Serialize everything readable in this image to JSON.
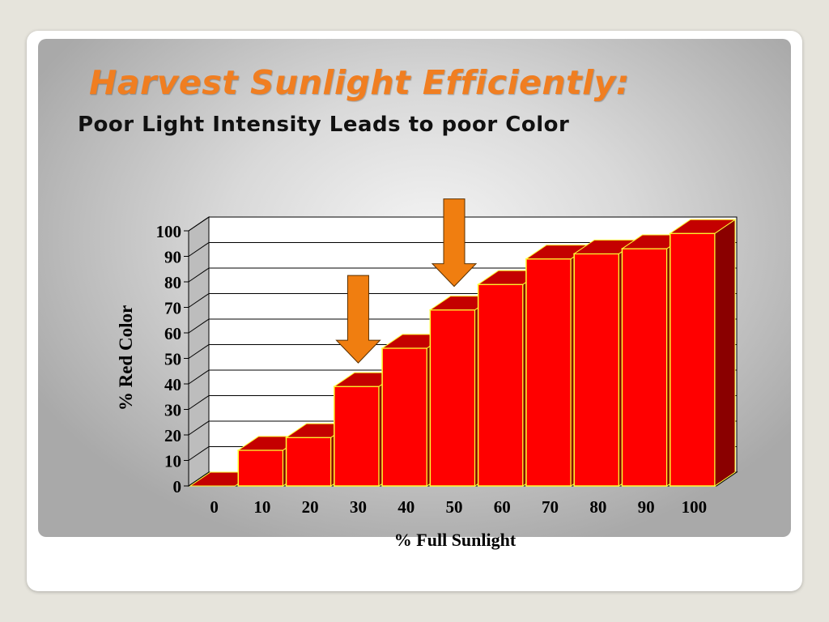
{
  "slide": {
    "title": "Harvest Sunlight Efficiently:",
    "subtitle": "Poor Light Intensity Leads to poor Color"
  },
  "colors": {
    "accent": "#f07e21",
    "bar_front": "#ff0000",
    "bar_top": "#c40000",
    "bar_side": "#8a0000",
    "bar_edge": "#ffff33",
    "arrow": "#f07e10"
  },
  "chart_data": {
    "type": "bar",
    "categories": [
      "0",
      "10",
      "20",
      "30",
      "40",
      "50",
      "60",
      "70",
      "80",
      "90",
      "100"
    ],
    "values": [
      0,
      14,
      19,
      39,
      54,
      69,
      79,
      89,
      91,
      93,
      99
    ],
    "xlabel": "% Full Sunlight",
    "ylabel": "% Red Color",
    "ylim": [
      0,
      100
    ],
    "yticks": [
      "0",
      "10",
      "20",
      "30",
      "40",
      "50",
      "60",
      "70",
      "80",
      "90",
      "100"
    ],
    "grid": true,
    "style": "3d",
    "annotations": [
      {
        "type": "arrow-down",
        "category": "30"
      },
      {
        "type": "arrow-down",
        "category": "50"
      }
    ]
  }
}
